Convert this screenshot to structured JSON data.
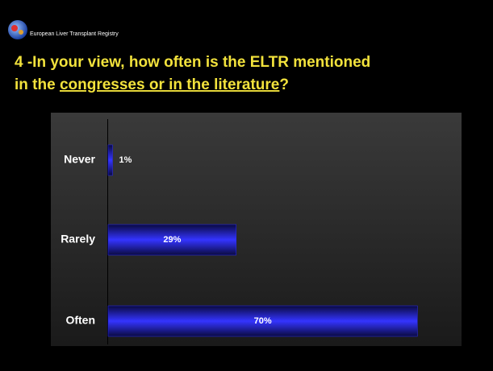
{
  "header": {
    "registry": "European Liver Transplant Registry"
  },
  "title_parts": [
    "4 -In your view, how often is the ELTR mentioned",
    "in the ",
    "congresses or in the literature",
    "?"
  ],
  "chart_data": {
    "type": "bar",
    "orientation": "horizontal",
    "categories": [
      "Never",
      "Rarely",
      "Often"
    ],
    "values": [
      1,
      29,
      70
    ],
    "value_labels": [
      "1%",
      "29%",
      "70%"
    ],
    "color": "#2a2aff",
    "xlim": [
      0,
      80
    ]
  }
}
